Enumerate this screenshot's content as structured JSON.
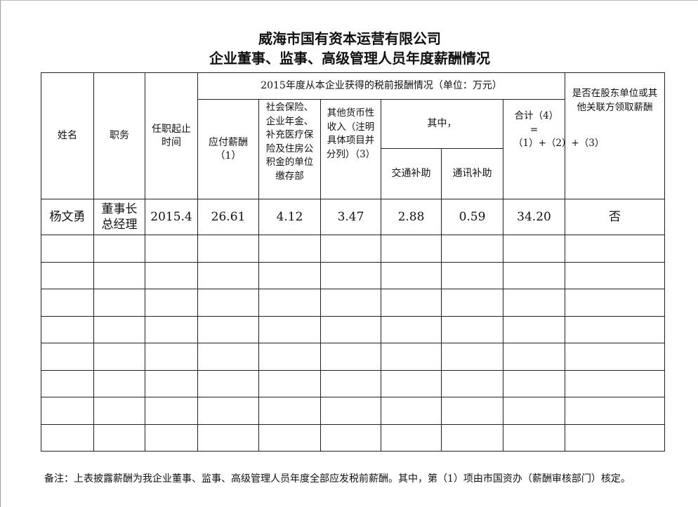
{
  "title": {
    "line1": "威海市国有资本运营有限公司",
    "line2": "企业董事、监事、高级管理人员年度薪酬情况"
  },
  "headers": {
    "name": "姓名",
    "position": "职务",
    "term": "任职起止时间",
    "group": "2015年度从本企业获得的税前报酬情况（单位：万元）",
    "salary": "应付薪酬（1）",
    "insurance": "社会保险、企业年金、补充医疗保险及住房公积金的单位缴存部",
    "other": "其他货币性收入（注明具体项目并分列）（3）",
    "among": "其中，",
    "transport": "交通补助",
    "telecom": "通讯补助",
    "total": "合计（4）=（1）+（2）+（3）",
    "related": "是否在股东单位或其他关联方领取薪酬"
  },
  "rows": [
    {
      "name": "杨文勇",
      "position_line1": "董事长",
      "position_line2": "总经理",
      "term": "2015.4",
      "salary": "26.61",
      "insurance": "4.12",
      "other": "3.47",
      "transport": "2.88",
      "telecom": "0.59",
      "total": "34.20",
      "related": "否"
    }
  ],
  "note": "备注：上表披露薪酬为我企业董事、监事、高级管理人员年度全部应发税前薪酬。其中，第（1）项由市国资办（薪酬审核部门）核定。"
}
